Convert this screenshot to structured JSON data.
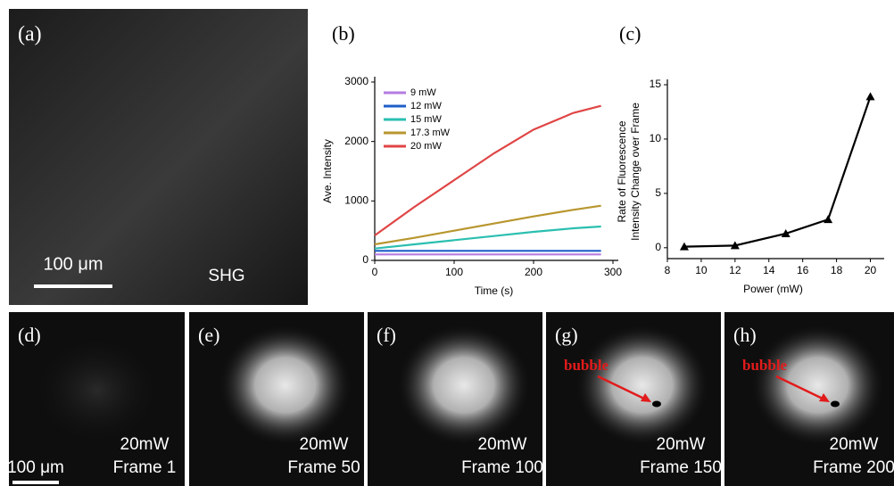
{
  "chart_data": [
    {
      "type": "line",
      "panel_label": "(b)",
      "xlabel": "Time (s)",
      "ylabel": "Ave. Intensity",
      "x": [
        0,
        50,
        100,
        150,
        200,
        250,
        285
      ],
      "series": [
        {
          "name": "9 mW",
          "color": "#b57be0",
          "values": [
            100,
            100,
            100,
            100,
            100,
            100,
            100
          ]
        },
        {
          "name": "12 mW",
          "color": "#1f5fc8",
          "values": [
            160,
            160,
            160,
            160,
            160,
            160,
            160
          ]
        },
        {
          "name": "15 mW",
          "color": "#2bbfb0",
          "values": [
            200,
            270,
            340,
            410,
            480,
            540,
            570
          ]
        },
        {
          "name": "17.3 mW",
          "color": "#b8962e",
          "values": [
            270,
            380,
            500,
            620,
            740,
            850,
            920
          ]
        },
        {
          "name": "20 mW",
          "color": "#e04545",
          "values": [
            420,
            900,
            1350,
            1800,
            2200,
            2480,
            2600
          ]
        }
      ],
      "xlim": [
        0,
        300
      ],
      "xticks": [
        0,
        100,
        200,
        300
      ],
      "ylim": [
        0,
        3000
      ],
      "yticks": [
        0,
        1000,
        2000,
        3000
      ],
      "legend": "upper-left"
    },
    {
      "type": "line",
      "panel_label": "(c)",
      "xlabel": "Power (mW)",
      "ylabel": [
        "Rate of Fluorescence",
        "Intensity Change over Frame"
      ],
      "x": [
        9,
        12,
        15,
        17.5,
        20
      ],
      "series": [
        {
          "color": "#000000",
          "values": [
            0.1,
            0.2,
            1.3,
            2.6,
            13.9
          ]
        }
      ],
      "xlim": [
        8,
        20.5
      ],
      "xticks": [
        8,
        10,
        12,
        14,
        16,
        18,
        20
      ],
      "ylim": [
        -1,
        15
      ],
      "yticks": [
        0,
        5,
        10,
        15
      ],
      "marker": "triangle"
    }
  ],
  "images": [
    {
      "label": "(a)",
      "text": [
        "SHG"
      ],
      "scale": "100 μm"
    },
    {
      "label": "(d)",
      "text": [
        "20mW",
        "Frame 1"
      ],
      "scale": "100 μm"
    },
    {
      "label": "(e)",
      "text": [
        "20mW",
        "Frame 50"
      ]
    },
    {
      "label": "(f)",
      "text": [
        "20mW",
        "Frame 100"
      ]
    },
    {
      "label": "(g)",
      "text": [
        "20mW",
        "Frame 150"
      ],
      "annotation": "bubble"
    },
    {
      "label": "(h)",
      "text": [
        "20mW",
        "Frame 200"
      ],
      "annotation": "bubble"
    }
  ]
}
